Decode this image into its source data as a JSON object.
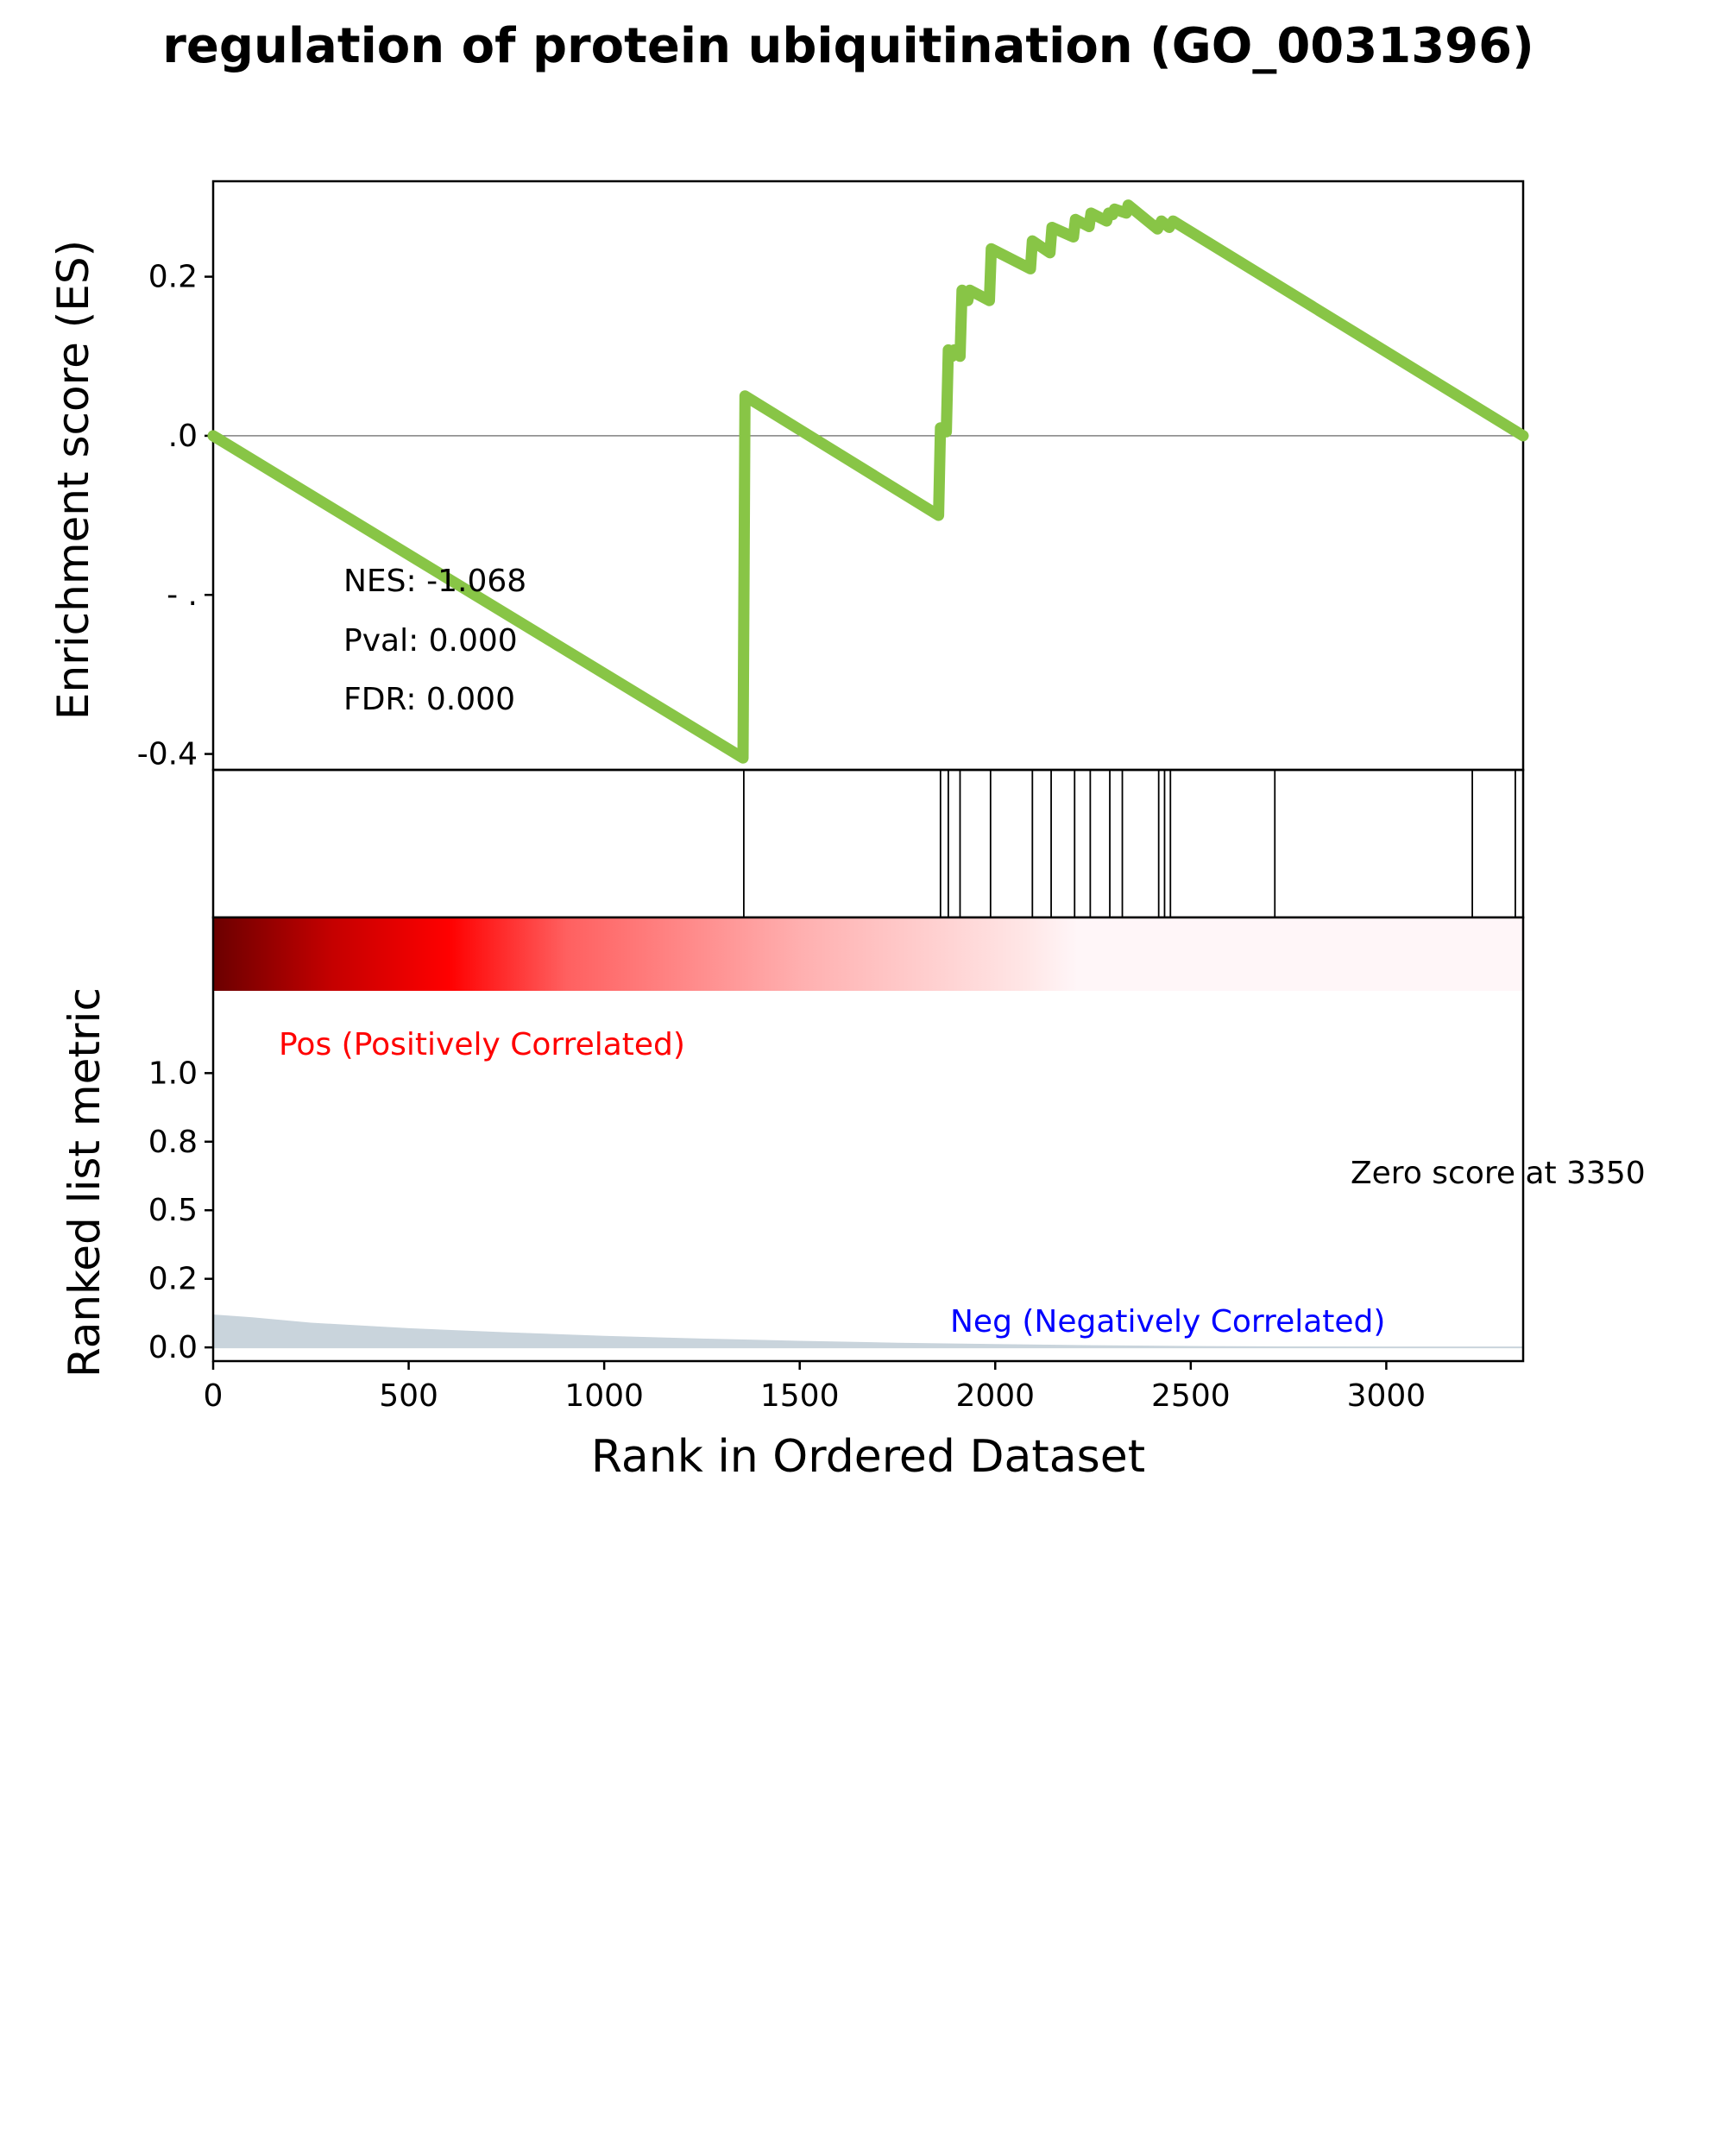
{
  "chart_data": {
    "type": "line",
    "title": "regulation of protein ubiquitination (GO_0031396)",
    "xlabel": "Rank in Ordered Dataset",
    "xlim": [
      0,
      3350
    ],
    "x_ticks": [
      0,
      500,
      1000,
      1500,
      2000,
      2500,
      3000
    ],
    "x_tick_labels": [
      "0",
      "500",
      "1000",
      "1500",
      "2000",
      "2500",
      "3000"
    ],
    "es_panel": {
      "ylabel": "Enrichment score (ES)",
      "ylim": [
        -0.42,
        0.32
      ],
      "y_ticks": [
        0.2,
        0.0,
        -0.2,
        -0.4
      ],
      "y_tick_labels": [
        "0.2",
        ".0",
        "-   .",
        "-0.4"
      ],
      "zero_line": true,
      "line_color": "#88c546",
      "stats": [
        "NES: -1.068",
        "Pval: 0.000",
        "FDR: 0.000"
      ],
      "series": [
        {
          "x": [
            0,
            1355,
            1360,
            1855,
            1860,
            1875,
            1880,
            1890,
            1895,
            1910,
            1915,
            1930,
            1935,
            1985,
            1990,
            2090,
            2095,
            2140,
            2145,
            2200,
            2205,
            2240,
            2245,
            2285,
            2290,
            2300,
            2305,
            2335,
            2340,
            2415,
            2425,
            2445,
            2455,
            3350
          ],
          "y": [
            0.0,
            -0.405,
            0.05,
            -0.1,
            0.01,
            0.005,
            0.108,
            0.1,
            0.108,
            0.1,
            0.183,
            0.17,
            0.183,
            0.17,
            0.235,
            0.21,
            0.245,
            0.23,
            0.262,
            0.25,
            0.272,
            0.263,
            0.28,
            0.27,
            0.28,
            0.278,
            0.285,
            0.28,
            0.29,
            0.26,
            0.27,
            0.262,
            0.27,
            0.0
          ]
        }
      ]
    },
    "hits_panel": {
      "hit_positions": [
        1357,
        1860,
        1880,
        1910,
        1988,
        2095,
        2143,
        2203,
        2243,
        2293,
        2325,
        2418,
        2433,
        2448,
        2715,
        3220,
        3330
      ]
    },
    "color_bar": {
      "colors": [
        "#6b0000",
        "#c40000",
        "#ff0000",
        "#ff6060",
        "#ffb0b0",
        "#ffe6e6",
        "#fff6f8"
      ]
    },
    "metric_panel": {
      "ylabel": "Ranked list metric",
      "ylim": [
        -0.05,
        1.3
      ],
      "y_ticks": [
        0.0,
        0.25,
        0.5,
        0.75,
        1.0
      ],
      "y_tick_labels": [
        "0.0",
        "0.2",
        "0.5",
        "0.8",
        "1.0"
      ],
      "pos_label": "Pos (Positively Correlated)",
      "neg_label": "Neg (Negatively Correlated)",
      "zero_label": "Zero score at 3350",
      "pos_color": "#ff0000",
      "neg_color": "#0000ff",
      "fill_color": "#c9d4dc",
      "series": [
        {
          "x": [
            0,
            100,
            250,
            500,
            750,
            1000,
            1250,
            1500,
            1750,
            2000,
            2250,
            2500,
            3000,
            3350
          ],
          "y": [
            0.12,
            0.11,
            0.09,
            0.07,
            0.055,
            0.042,
            0.032,
            0.024,
            0.017,
            0.012,
            0.008,
            0.005,
            0.002,
            0.0
          ]
        }
      ]
    }
  }
}
